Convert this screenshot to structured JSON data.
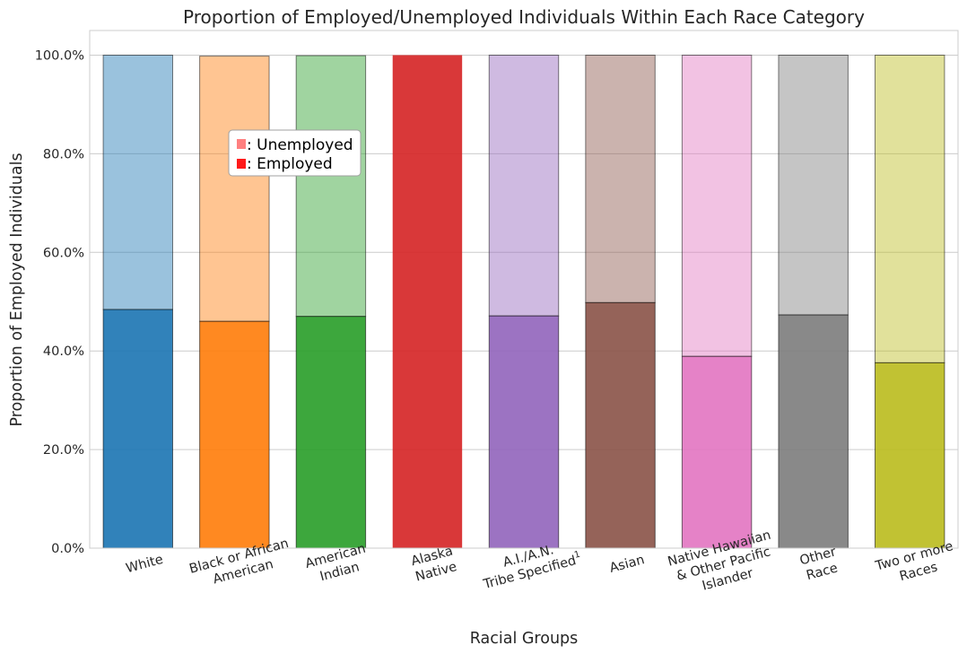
{
  "chart_data": {
    "type": "bar",
    "title": "Proportion of Employed/Unemployed Individuals Within Each Race Category",
    "xlabel": "Racial Groups",
    "ylabel": "Proportion of Employed Individuals",
    "ylim": [
      0,
      1.05
    ],
    "yticks": [
      0,
      0.2,
      0.4,
      0.6,
      0.8,
      1.0
    ],
    "ytick_labels": [
      "0.0%",
      "20.0%",
      "40.0%",
      "60.0%",
      "80.0%",
      "100.0%"
    ],
    "grid": "horizontal",
    "categories": [
      {
        "lines": [
          "White"
        ]
      },
      {
        "lines": [
          "Black or African",
          "American"
        ]
      },
      {
        "lines": [
          "American",
          "Indian"
        ]
      },
      {
        "lines": [
          "Alaska",
          "Native"
        ]
      },
      {
        "lines": [
          "A.I./A.N.",
          "Tribe Specified"
        ],
        "superscript": "1"
      },
      {
        "lines": [
          "Asian"
        ]
      },
      {
        "lines": [
          "Native Hawaiian",
          "& Other Pacific",
          "Islander"
        ]
      },
      {
        "lines": [
          "Other",
          "Race"
        ]
      },
      {
        "lines": [
          "Two or more",
          "Races"
        ]
      }
    ],
    "series": [
      {
        "name": "Employed",
        "values": [
          0.484,
          0.46,
          0.47,
          1.0,
          0.471,
          0.498,
          0.389,
          0.473,
          0.376
        ]
      },
      {
        "name": "Unemployed",
        "values": [
          0.516,
          0.538,
          0.529,
          0.0,
          0.529,
          0.502,
          0.611,
          0.527,
          0.624
        ]
      }
    ],
    "colors": [
      "#1f77b4",
      "#ff7f0e",
      "#2ca02c",
      "#d62728",
      "#9467bd",
      "#8c564b",
      "#e377c2",
      "#7f7f7f",
      "#bcbd22"
    ],
    "legend": {
      "placement": "upper-left",
      "items": [
        {
          "label": ": Unemployed",
          "color": "#ff8080"
        },
        {
          "label": ": Employed",
          "color": "#ff1a1a"
        }
      ]
    }
  }
}
